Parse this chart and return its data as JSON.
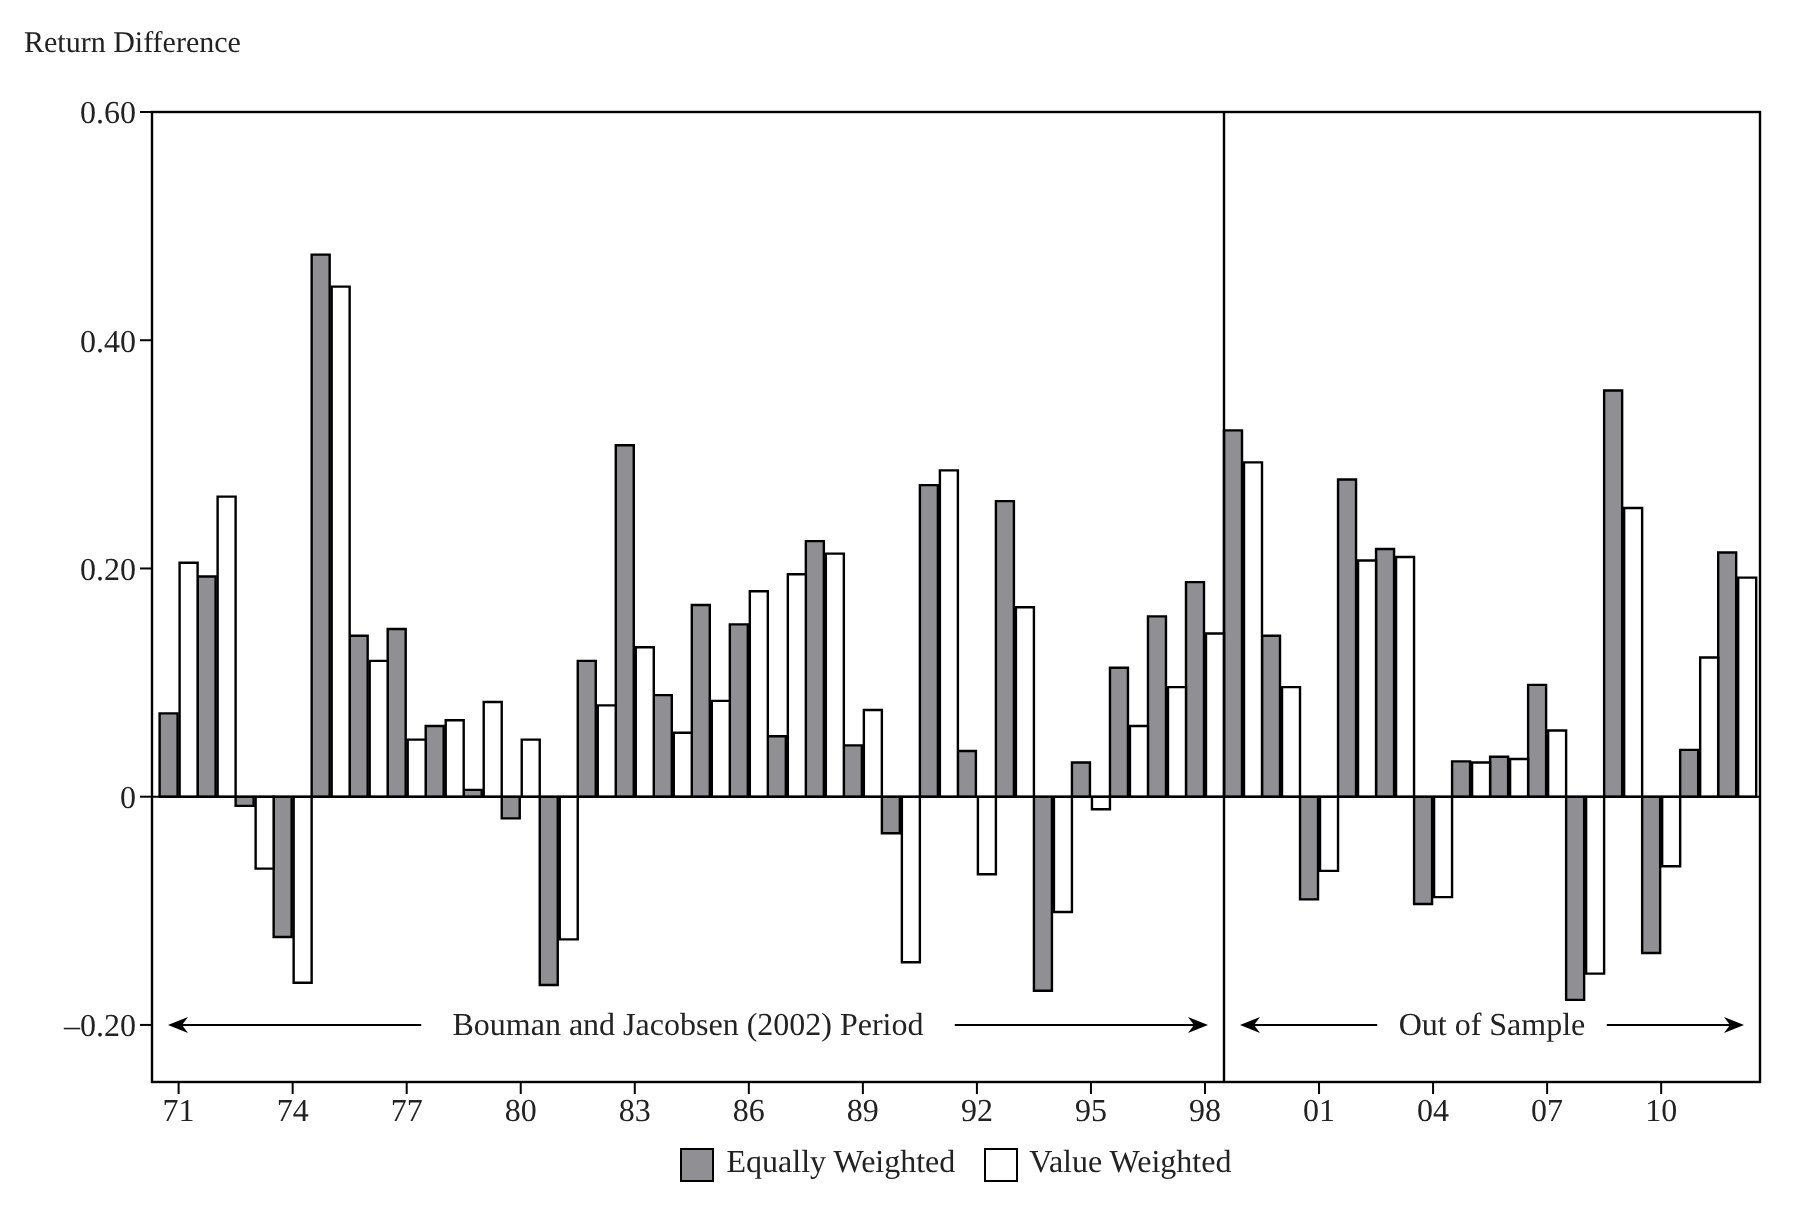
{
  "chart_data": {
    "type": "bar",
    "ylabel": "Return Difference",
    "x": [
      1971,
      1972,
      1973,
      1974,
      1975,
      1976,
      1977,
      1978,
      1979,
      1980,
      1981,
      1982,
      1983,
      1984,
      1985,
      1986,
      1987,
      1988,
      1989,
      1990,
      1991,
      1992,
      1993,
      1994,
      1995,
      1996,
      1997,
      1998,
      1999,
      2000,
      2001,
      2002,
      2003,
      2004,
      2005,
      2006,
      2007,
      2008,
      2009,
      2010,
      2011,
      2012
    ],
    "series": [
      {
        "name": "Equally Weighted",
        "color": "#8f8f94",
        "values": [
          0.073,
          0.193,
          -0.008,
          -0.123,
          0.475,
          0.141,
          0.147,
          0.062,
          0.006,
          -0.019,
          -0.165,
          0.119,
          0.308,
          0.089,
          0.168,
          0.151,
          0.053,
          0.224,
          0.045,
          -0.032,
          0.273,
          0.04,
          0.259,
          -0.17,
          0.03,
          0.113,
          0.158,
          0.188,
          0.321,
          0.141,
          -0.09,
          0.278,
          0.217,
          -0.094,
          0.031,
          0.035,
          0.098,
          -0.178,
          0.356,
          -0.137,
          0.041,
          0.214
        ]
      },
      {
        "name": "Value Weighted",
        "color": "#ffffff",
        "values": [
          0.205,
          0.263,
          -0.063,
          -0.163,
          0.447,
          0.119,
          0.05,
          0.067,
          0.083,
          0.05,
          -0.125,
          0.08,
          0.131,
          0.056,
          0.084,
          0.18,
          0.195,
          0.213,
          0.076,
          -0.145,
          0.286,
          -0.068,
          0.166,
          -0.101,
          -0.011,
          0.062,
          0.096,
          0.143,
          0.293,
          0.096,
          -0.065,
          0.207,
          0.21,
          -0.088,
          0.03,
          0.033,
          0.058,
          -0.155,
          0.253,
          -0.061,
          0.122,
          0.192
        ]
      }
    ],
    "xlim": [
      1970.3,
      2012.6
    ],
    "xticks": [
      {
        "value": 1971,
        "label": "71"
      },
      {
        "value": 1974,
        "label": "74"
      },
      {
        "value": 1977,
        "label": "77"
      },
      {
        "value": 1980,
        "label": "80"
      },
      {
        "value": 1983,
        "label": "83"
      },
      {
        "value": 1986,
        "label": "86"
      },
      {
        "value": 1989,
        "label": "89"
      },
      {
        "value": 1992,
        "label": "92"
      },
      {
        "value": 1995,
        "label": "95"
      },
      {
        "value": 1998,
        "label": "98"
      },
      {
        "value": 2001,
        "label": "01"
      },
      {
        "value": 2004,
        "label": "04"
      },
      {
        "value": 2007,
        "label": "07"
      },
      {
        "value": 2010,
        "label": "10"
      }
    ],
    "ylim": [
      -0.25,
      0.6
    ],
    "yticks": [
      {
        "value": -0.2,
        "label": "–0.20"
      },
      {
        "value": 0,
        "label": "0"
      },
      {
        "value": 0.2,
        "label": "0.20"
      },
      {
        "value": 0.4,
        "label": "0.40"
      },
      {
        "value": 0.6,
        "label": "0.60"
      }
    ],
    "ref_lines": [
      {
        "axis": "x",
        "value": 1998.5,
        "color": "#000000"
      },
      {
        "axis": "y",
        "value": 0,
        "color": "#000000"
      }
    ],
    "annotations": [
      "Bouman and Jacobsen (2002) Period",
      "Out of Sample"
    ],
    "grid": false,
    "legend": "bottom"
  }
}
